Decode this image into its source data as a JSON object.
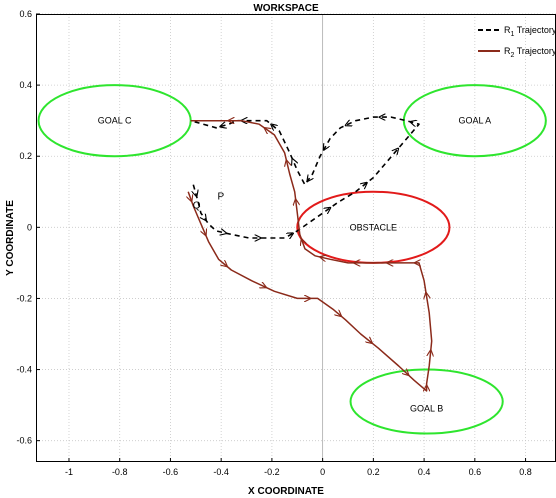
{
  "chart_data": {
    "type": "line",
    "title": "WORKSPACE",
    "xlabel": "X COORDINATE",
    "ylabel": "Y COORDINATE",
    "xlim": [
      -1.13,
      0.92
    ],
    "ylim": [
      -0.66,
      0.6
    ],
    "xticks": [
      -1,
      -0.8,
      -0.6,
      -0.4,
      -0.2,
      0,
      0.2,
      0.4,
      0.6,
      0.8
    ],
    "xtick_labels": [
      "-1",
      "-0.8",
      "-0.6",
      "-0.4",
      "-0.2",
      "0",
      "0.2",
      "0.4",
      "0.6",
      "0.8"
    ],
    "yticks": [
      0.6,
      0.4,
      0.2,
      0,
      -0.2,
      -0.4,
      -0.6
    ],
    "ytick_labels": [
      "0.6",
      "0.4",
      "0.2",
      "0",
      "-0.2",
      "-0.4",
      "-0.6"
    ],
    "grid": true,
    "legend_position": "top-right",
    "regions": [
      {
        "label": "GOAL C",
        "center": [
          -0.82,
          0.3
        ],
        "radii": [
          0.3,
          0.1
        ],
        "color": "#2ee52e"
      },
      {
        "label": "GOAL A",
        "center": [
          0.6,
          0.3
        ],
        "radii": [
          0.28,
          0.1
        ],
        "color": "#2ee52e"
      },
      {
        "label": "OBSTACLE",
        "center": [
          0.2,
          0.0
        ],
        "radii": [
          0.3,
          0.1
        ],
        "color": "#e21a1a"
      },
      {
        "label": "GOAL B",
        "center": [
          0.41,
          -0.49
        ],
        "radii": [
          0.3,
          0.09
        ],
        "color": "#2ee52e"
      }
    ],
    "start_points": [
      {
        "label": "P",
        "x": -0.5,
        "y": 0.12
      },
      {
        "label": "Q",
        "x": -0.54,
        "y": 0.12
      }
    ],
    "series": [
      {
        "name": "R1 Trajectory",
        "name_base": "R",
        "name_sub": "1",
        "name_rest": " Trajectory",
        "color": "#000000",
        "style": "dashed",
        "x": [
          -0.51,
          -0.49,
          -0.48,
          -0.45,
          -0.42,
          -0.36,
          -0.29,
          -0.22,
          -0.15,
          -0.1,
          -0.02,
          0.06,
          0.13,
          0.2,
          0.26,
          0.32,
          0.38,
          0.33,
          0.27,
          0.2,
          0.13,
          0.07,
          0.03,
          -0.01,
          -0.04,
          -0.07,
          -0.1,
          -0.13,
          -0.17,
          -0.22,
          -0.28,
          -0.34,
          -0.37,
          -0.42,
          -0.52
        ],
        "y": [
          0.12,
          0.07,
          0.04,
          0.01,
          -0.01,
          -0.02,
          -0.03,
          -0.03,
          -0.03,
          -0.01,
          0.03,
          0.07,
          0.1,
          0.14,
          0.19,
          0.24,
          0.29,
          0.3,
          0.31,
          0.31,
          0.3,
          0.28,
          0.25,
          0.2,
          0.15,
          0.12,
          0.16,
          0.21,
          0.27,
          0.3,
          0.3,
          0.3,
          0.29,
          0.28,
          0.3
        ]
      },
      {
        "name": "R2 Trajectory",
        "name_base": "R",
        "name_sub": "2",
        "name_rest": " Trajectory",
        "color": "#8b2a1a",
        "style": "solid",
        "x": [
          -0.53,
          -0.51,
          -0.48,
          -0.45,
          -0.41,
          -0.36,
          -0.28,
          -0.19,
          -0.1,
          -0.02,
          0.04,
          0.09,
          0.15,
          0.22,
          0.3,
          0.36,
          0.41,
          0.41,
          0.42,
          0.43,
          0.42,
          0.4,
          0.38,
          0.36,
          0.3,
          0.23,
          0.17,
          0.1,
          0.03,
          -0.03,
          -0.07,
          -0.09,
          -0.1,
          -0.11,
          -0.13,
          -0.15,
          -0.19,
          -0.25,
          -0.32,
          -0.4,
          -0.52
        ],
        "y": [
          0.1,
          0.06,
          0.01,
          -0.04,
          -0.09,
          -0.12,
          -0.15,
          -0.18,
          -0.2,
          -0.2,
          -0.23,
          -0.26,
          -0.3,
          -0.34,
          -0.39,
          -0.43,
          -0.46,
          -0.44,
          -0.39,
          -0.32,
          -0.24,
          -0.15,
          -0.1,
          -0.1,
          -0.1,
          -0.1,
          -0.1,
          -0.1,
          -0.09,
          -0.08,
          -0.06,
          -0.02,
          0.04,
          0.1,
          0.15,
          0.21,
          0.26,
          0.29,
          0.3,
          0.3,
          0.3
        ]
      }
    ]
  }
}
